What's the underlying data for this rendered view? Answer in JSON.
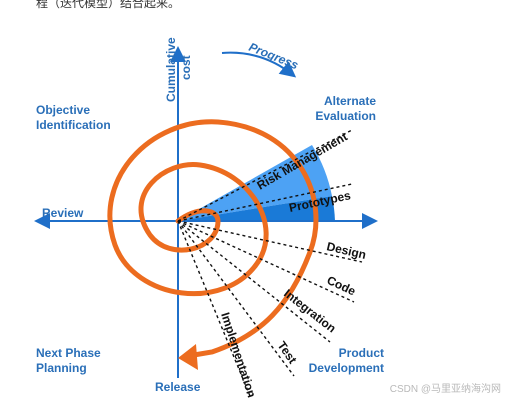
{
  "header_snippet": "程（迭代模型）结合起来。",
  "watermark": "CSDN @马里亚纳海沟网",
  "axes": {
    "vertical": "Cumulative cost",
    "vertical_lines": [
      "Cumulative",
      "cost"
    ],
    "horizontal_left": "Review",
    "bottom": "Release"
  },
  "progress": "Progress",
  "quadrants": {
    "top_left": [
      "Objective",
      "Identification"
    ],
    "top_right": [
      "Alternate",
      "Evaluation"
    ],
    "bottom_left": [
      "Next Phase",
      "Planning"
    ],
    "bottom_right": [
      "Product",
      "Development"
    ]
  },
  "wedge_labels": [
    "Risk Management",
    "Prototypes"
  ],
  "phase_labels": [
    "Design",
    "Code",
    "Integration",
    "Test",
    "Implementation"
  ],
  "colors": {
    "axis": "#1f6fc9",
    "label": "#2a6fb8",
    "spiral": "#ec6c1f",
    "wedge_light": "#4da2f4",
    "wedge_dark": "#1a7ad7",
    "dash": "#111111"
  }
}
